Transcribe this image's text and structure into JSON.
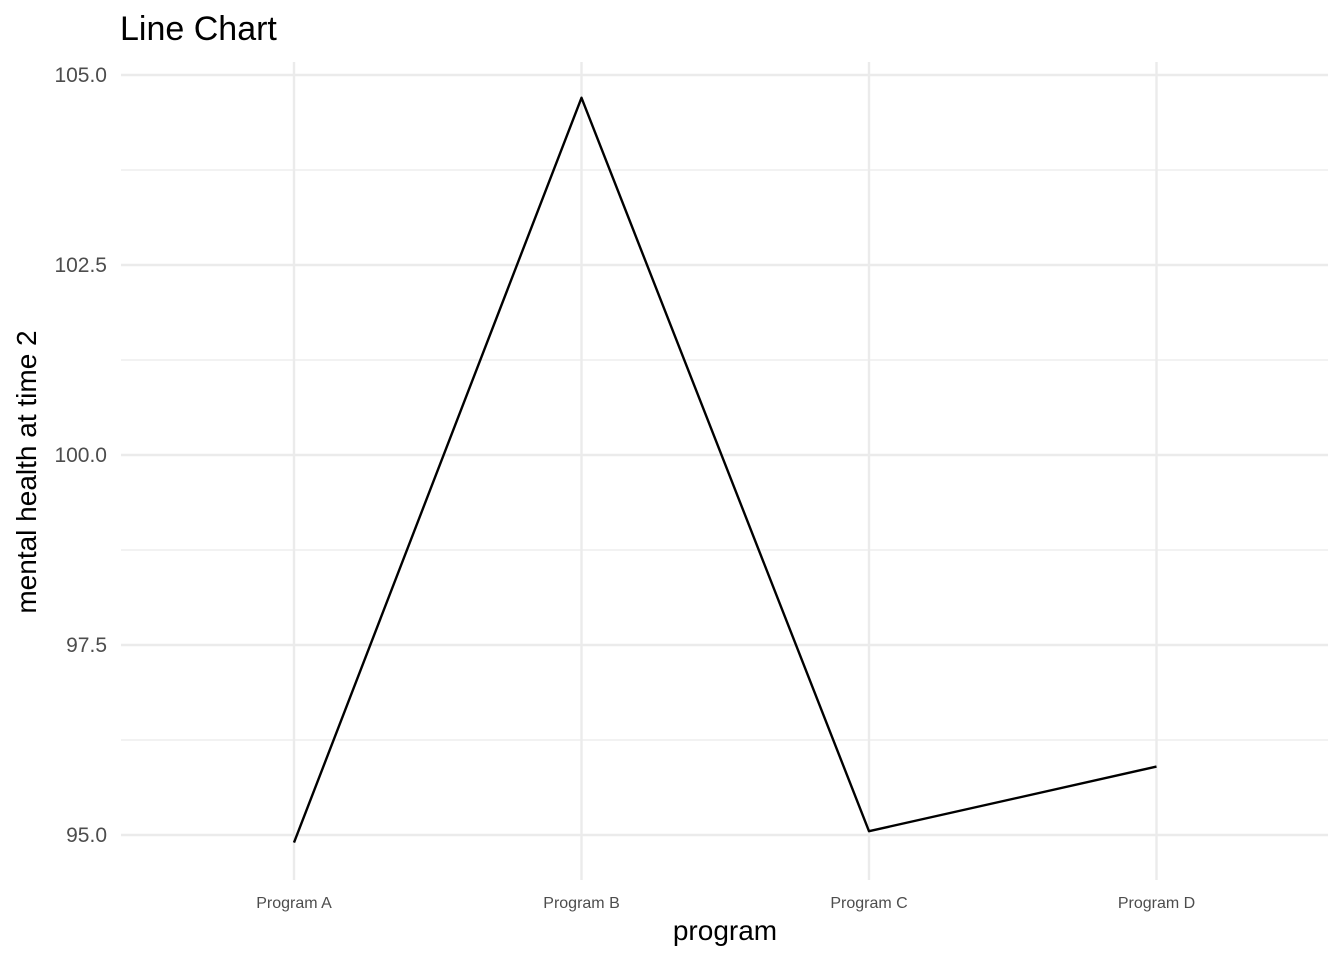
{
  "chart_data": {
    "type": "line",
    "title": "Line Chart",
    "xlabel": "program",
    "ylabel": "mental health at time 2",
    "categories": [
      "Program A",
      "Program B",
      "Program C",
      "Program D"
    ],
    "series": [
      {
        "values": [
          94.9,
          104.7,
          95.05,
          95.9
        ],
        "color": "#000000"
      }
    ],
    "ylim": [
      94.5,
      105.2
    ],
    "yticks": [
      95.0,
      97.5,
      100.0,
      102.5,
      105.0
    ],
    "ytick_labels": [
      "95.0",
      "97.5",
      "100.0",
      "102.5",
      "105.0"
    ],
    "y_minor_ticks": [
      96.25,
      98.75,
      101.25,
      103.75
    ],
    "grid": true,
    "grid_color": "#ebebeb",
    "legend": "none"
  }
}
